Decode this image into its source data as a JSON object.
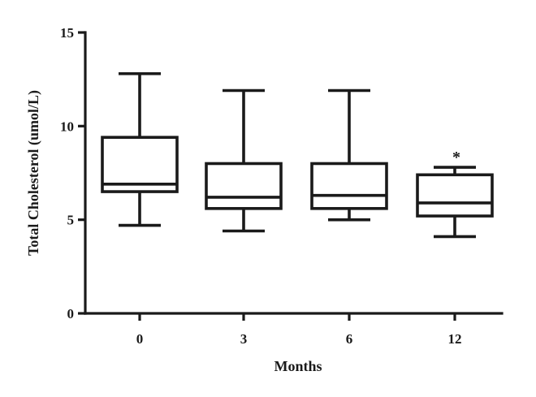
{
  "chart_data": {
    "type": "box",
    "xlabel": "Months",
    "ylabel": "Total Cholesterol (umol/L)",
    "ylim": [
      0,
      15
    ],
    "yticks": [
      "0",
      "5",
      "10",
      "15"
    ],
    "categories": [
      "0",
      "3",
      "6",
      "12"
    ],
    "boxes": [
      {
        "category": "0",
        "min": 4.7,
        "q1": 6.5,
        "median": 6.9,
        "q3": 9.4,
        "max": 12.8,
        "annotation": ""
      },
      {
        "category": "3",
        "min": 4.4,
        "q1": 5.6,
        "median": 6.2,
        "q3": 8.0,
        "max": 11.9,
        "annotation": ""
      },
      {
        "category": "6",
        "min": 5.0,
        "q1": 5.6,
        "median": 6.3,
        "q3": 8.0,
        "max": 11.9,
        "annotation": ""
      },
      {
        "category": "12",
        "min": 4.1,
        "q1": 5.2,
        "median": 5.9,
        "q3": 7.4,
        "max": 7.8,
        "annotation": "*"
      }
    ],
    "grid": false,
    "legend": "none"
  }
}
